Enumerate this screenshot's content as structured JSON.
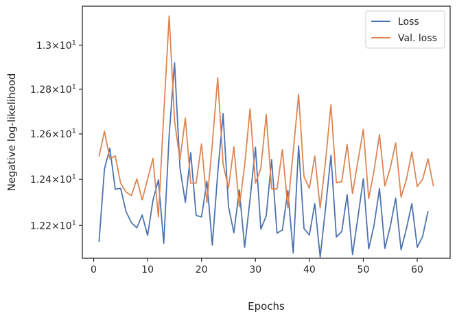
{
  "chart_data": {
    "type": "line",
    "title": "",
    "xlabel": "Epochs",
    "ylabel": "Negative log-likelihood",
    "yscale": "log",
    "xlim": [
      -2.1,
      66.1
    ],
    "ylim": [
      12.06,
      13.18
    ],
    "xticks": [
      0,
      10,
      20,
      30,
      40,
      50,
      60
    ],
    "xtick_labels": [
      "0",
      "10",
      "20",
      "30",
      "40",
      "50",
      "60"
    ],
    "yticks": [
      12.2,
      12.4,
      12.6,
      12.8,
      13.0
    ],
    "ytick_labels": [
      {
        "mantissa": "1.22",
        "exp": "1"
      },
      {
        "mantissa": "1.24",
        "exp": "1"
      },
      {
        "mantissa": "1.26",
        "exp": "1"
      },
      {
        "mantissa": "1.28",
        "exp": "1"
      },
      {
        "mantissa": "1.3",
        "exp": "1"
      }
    ],
    "grid": false,
    "legend_position": "top-right",
    "x": [
      1,
      2,
      3,
      4,
      5,
      6,
      7,
      8,
      9,
      10,
      11,
      12,
      13,
      14,
      15,
      16,
      17,
      18,
      19,
      20,
      21,
      22,
      23,
      24,
      25,
      26,
      27,
      28,
      29,
      30,
      31,
      32,
      33,
      34,
      35,
      36,
      37,
      38,
      39,
      40,
      41,
      42,
      43,
      44,
      45,
      46,
      47,
      48,
      49,
      50,
      51,
      52,
      53,
      54,
      55,
      56,
      57,
      58,
      59,
      60,
      61,
      62,
      63
    ],
    "series": [
      {
        "name": "Loss",
        "color": "#4c72b0",
        "values": [
          12.13,
          12.445,
          12.537,
          12.357,
          12.361,
          12.26,
          12.212,
          12.19,
          12.245,
          12.157,
          12.31,
          12.397,
          12.124,
          12.595,
          12.92,
          12.45,
          12.3,
          12.517,
          12.243,
          12.237,
          12.391,
          12.116,
          12.426,
          12.69,
          12.281,
          12.169,
          12.354,
          12.107,
          12.314,
          12.541,
          12.184,
          12.242,
          12.486,
          12.167,
          12.181,
          12.351,
          12.082,
          12.548,
          12.187,
          12.159,
          12.294,
          12.065,
          12.275,
          12.505,
          12.151,
          12.174,
          12.333,
          12.076,
          12.235,
          12.403,
          12.1,
          12.202,
          12.36,
          12.102,
          12.196,
          12.318,
          12.096,
          12.187,
          12.294,
          12.107,
          12.153,
          12.262,
          null
        ],
        "last": 12.262
      },
      {
        "name": "Val. loss",
        "color": "#dd8452",
        "values": [
          12.5,
          12.612,
          12.49,
          12.503,
          12.383,
          12.345,
          12.329,
          12.402,
          12.311,
          12.401,
          12.492,
          12.237,
          12.69,
          13.135,
          12.658,
          12.485,
          12.671,
          12.383,
          12.384,
          12.556,
          12.298,
          12.555,
          12.852,
          12.467,
          12.362,
          12.543,
          12.281,
          12.462,
          12.712,
          12.383,
          12.448,
          12.687,
          12.359,
          12.358,
          12.531,
          12.276,
          12.521,
          12.777,
          12.412,
          12.361,
          12.502,
          12.275,
          12.48,
          12.73,
          12.385,
          12.39,
          12.553,
          12.338,
          12.479,
          12.62,
          12.316,
          12.439,
          12.597,
          12.371,
          12.45,
          12.56,
          12.323,
          12.4,
          12.52,
          12.369,
          12.4,
          12.49,
          12.37
        ]
      }
    ]
  }
}
